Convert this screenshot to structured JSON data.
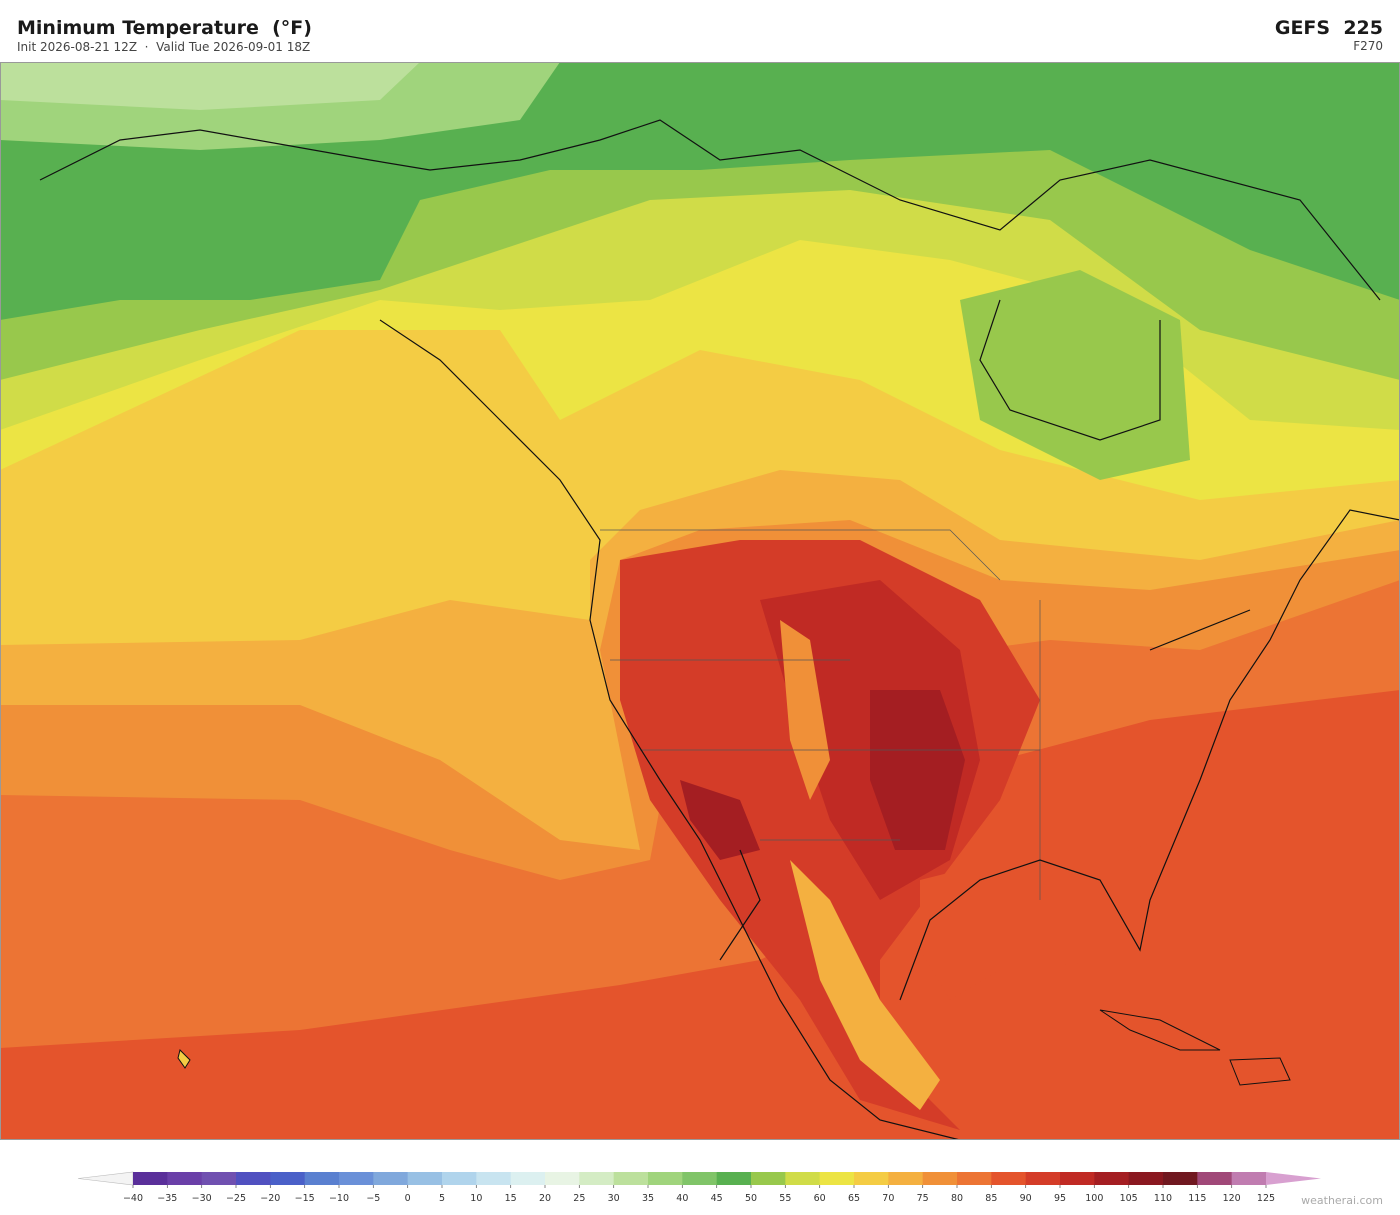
{
  "header": {
    "title": "Minimum Temperature  (°F)",
    "subtitle": "Init 2026-08-21 12Z  ·  Valid Tue 2026-09-01 18Z",
    "model": "GEFS  225",
    "forecast_hour": "F270"
  },
  "colorbar": {
    "ticks": [
      {
        "value": -40,
        "label": "−40"
      },
      {
        "value": -35,
        "label": "−35"
      },
      {
        "value": -30,
        "label": "−30"
      },
      {
        "value": -25,
        "label": "−25"
      },
      {
        "value": -20,
        "label": "−20"
      },
      {
        "value": -15,
        "label": "−15"
      },
      {
        "value": -10,
        "label": "−10"
      },
      {
        "value": -5,
        "label": "−5"
      },
      0,
      5,
      10,
      15,
      20,
      25,
      30,
      35,
      40,
      45,
      50,
      55,
      60,
      65,
      70,
      75,
      80,
      85,
      90,
      95,
      100,
      105,
      110,
      115,
      120,
      125
    ],
    "colors": [
      "#5a2f9a",
      "#6a3fa8",
      "#7050b0",
      "#5050c0",
      "#4a60c8",
      "#5a80d0",
      "#6a90d8",
      "#80a8dc",
      "#98c0e4",
      "#b0d4ec",
      "#c8e4f0",
      "#dcf0f0",
      "#e8f4e4",
      "#d4ecc4",
      "#bce09c",
      "#a0d47c",
      "#80c468",
      "#58b050",
      "#98c84c",
      "#d0dc48",
      "#ece444",
      "#f4cc44",
      "#f4b040",
      "#f09038",
      "#ec7434",
      "#e4542c",
      "#d43c28",
      "#c02a24",
      "#a41e22",
      "#8a1820",
      "#701820",
      "#a04878",
      "#c07cb0"
    ],
    "extend_colors": [
      "#f4f4f4",
      "#d8a0d0"
    ]
  },
  "watermark": "weatherai.com"
}
